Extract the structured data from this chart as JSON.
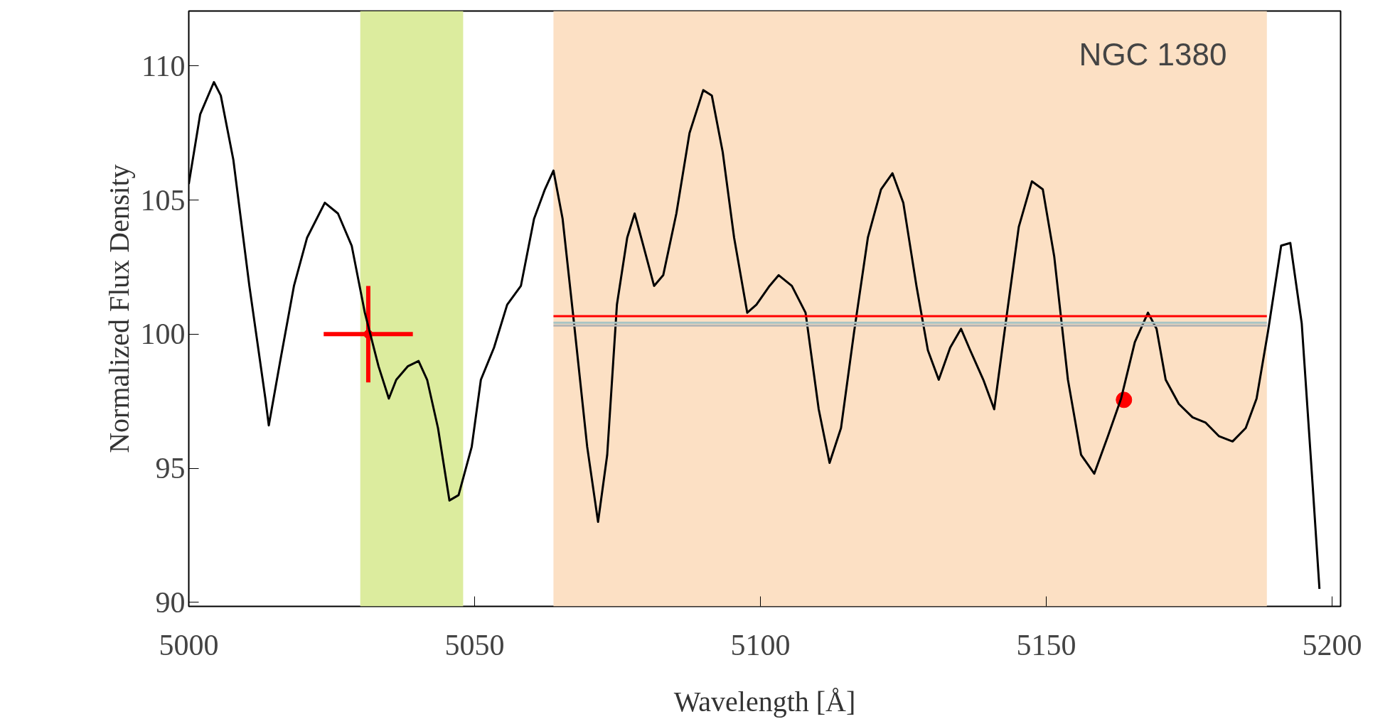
{
  "chart_data": {
    "type": "line",
    "xlabel": "Wavelength [Å]",
    "ylabel": "Normalized Flux Density",
    "annotations": [
      "NGC 1380"
    ],
    "xlim": [
      5000,
      5201.5
    ],
    "ylim": [
      89.85,
      112.05
    ],
    "xticks": [
      5000,
      5050,
      5100,
      5150,
      5200
    ],
    "yticks": [
      90,
      95,
      100,
      105,
      110
    ],
    "grid": false,
    "line_style": "solid",
    "marker": "none",
    "bands": [
      {
        "axis": "x",
        "from": 5030,
        "to": 5048,
        "color": "#dcec9e"
      },
      {
        "axis": "x",
        "from": 5063.8,
        "to": 5188.6,
        "color": "#fce0c4"
      }
    ],
    "series": [
      {
        "color": "#000000",
        "x": [
          5000,
          5002,
          5004.4,
          5005.6,
          5007.8,
          5010.6,
          5013.4,
          5014.0,
          5016.0,
          5018.4,
          5020.7,
          5023.8,
          5026.1,
          5028.5,
          5030.8,
          5033.2,
          5035.0,
          5036.3,
          5038.3,
          5040.2,
          5041.7,
          5043.6,
          5045.6,
          5047.2,
          5049.5,
          5051.1,
          5053.4,
          5055.7,
          5058.1,
          5060.4,
          5062.3,
          5063.8,
          5065.4,
          5067.4,
          5069.7,
          5071.6,
          5073.2,
          5074.9,
          5076.7,
          5078.0,
          5079.4,
          5081.4,
          5083.0,
          5085.3,
          5087.6,
          5090.0,
          5091.5,
          5093.4,
          5095.4,
          5097.7,
          5099.3,
          5101.6,
          5103.2,
          5105.5,
          5107.9,
          5110.2,
          5112.1,
          5114.1,
          5116.4,
          5118.8,
          5121.1,
          5123.1,
          5125.0,
          5127.3,
          5129.3,
          5131.2,
          5133.2,
          5135.1,
          5136.7,
          5139.0,
          5140.9,
          5142.9,
          5145.2,
          5147.5,
          5149.4,
          5151.4,
          5153.8,
          5156.1,
          5158.4,
          5160.8,
          5163.1,
          5165.5,
          5167.8,
          5169.3,
          5170.9,
          5173.2,
          5175.6,
          5177.9,
          5180.2,
          5182.6,
          5184.9,
          5186.8,
          5188.8,
          5191.1,
          5192.7,
          5194.7,
          5196.6,
          5197.8
        ],
        "values": [
          105.6,
          108.2,
          109.4,
          108.9,
          106.5,
          101.8,
          97.6,
          96.6,
          99.0,
          101.8,
          103.6,
          104.9,
          104.5,
          103.3,
          100.8,
          98.8,
          97.6,
          98.3,
          98.8,
          99.0,
          98.3,
          96.5,
          93.8,
          94.0,
          95.8,
          98.3,
          99.5,
          101.1,
          101.8,
          104.3,
          105.4,
          106.1,
          104.3,
          100.4,
          95.8,
          93.0,
          95.5,
          101.1,
          103.6,
          104.5,
          103.4,
          101.8,
          102.2,
          104.5,
          107.5,
          109.1,
          108.9,
          106.8,
          103.6,
          100.8,
          101.1,
          101.8,
          102.2,
          101.8,
          100.8,
          97.2,
          95.2,
          96.5,
          100.1,
          103.6,
          105.4,
          106.0,
          104.9,
          101.8,
          99.4,
          98.3,
          99.5,
          100.2,
          99.4,
          98.3,
          97.2,
          100.4,
          104.0,
          105.7,
          105.4,
          102.9,
          98.3,
          95.5,
          94.8,
          96.2,
          97.6,
          99.7,
          100.8,
          100.2,
          98.3,
          97.4,
          96.9,
          96.7,
          96.2,
          96.0,
          96.5,
          97.6,
          100.1,
          103.3,
          103.4,
          100.4,
          94.4,
          90.5
        ]
      },
      {
        "color": "#b4b4b4",
        "x": [
          5063.8,
          5188.6
        ],
        "values": [
          100.32,
          100.32
        ]
      },
      {
        "color": "#a8c4c4",
        "x": [
          5063.8,
          5188.6
        ],
        "values": [
          100.43,
          100.43
        ]
      },
      {
        "color": "#ff0000",
        "x": [
          5063.8,
          5188.6
        ],
        "values": [
          100.67,
          100.67
        ]
      },
      {
        "type": "scatter",
        "marker": "circle",
        "color": "#ff0000",
        "x": [
          5031.4
        ],
        "values": [
          100.0
        ],
        "errors": [
          1.8
        ],
        "xerrors": [
          7.8
        ]
      },
      {
        "type": "scatter",
        "marker": "circle",
        "color": "#ff0000",
        "x": [
          5163.6
        ],
        "values": [
          97.55
        ]
      }
    ]
  }
}
